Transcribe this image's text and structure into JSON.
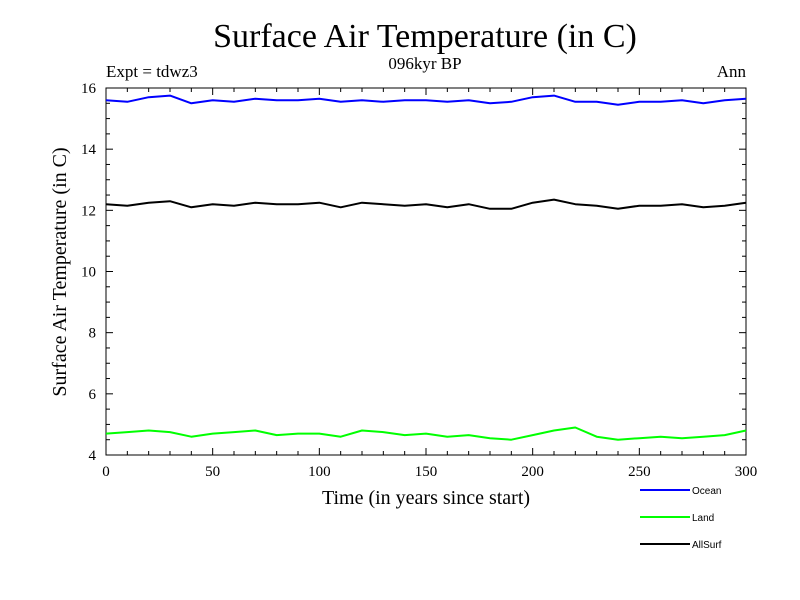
{
  "chart_data": {
    "type": "line",
    "title": "Surface Air Temperature (in C)",
    "subtitle_left": "Expt = tdwz3",
    "subtitle_center": "096kyr BP",
    "subtitle_right": "Ann",
    "xlabel": "Time (in years since start)",
    "ylabel": "Surface Air Temperature (in C)",
    "xlim": [
      0,
      300
    ],
    "ylim": [
      4,
      16
    ],
    "xticks": [
      0,
      50,
      100,
      150,
      200,
      250,
      300
    ],
    "yticks": [
      4,
      6,
      8,
      10,
      12,
      14,
      16
    ],
    "grid": false,
    "legend_position": "bottom-right",
    "series": [
      {
        "name": "Ocean",
        "color": "#0000ff",
        "x": [
          0,
          10,
          20,
          30,
          40,
          50,
          60,
          70,
          80,
          90,
          100,
          110,
          120,
          130,
          140,
          150,
          160,
          170,
          180,
          190,
          200,
          210,
          220,
          230,
          240,
          250,
          260,
          270,
          280,
          290,
          300
        ],
        "y": [
          15.6,
          15.55,
          15.7,
          15.75,
          15.5,
          15.6,
          15.55,
          15.65,
          15.6,
          15.6,
          15.65,
          15.55,
          15.6,
          15.55,
          15.6,
          15.6,
          15.55,
          15.6,
          15.5,
          15.55,
          15.7,
          15.75,
          15.55,
          15.55,
          15.45,
          15.55,
          15.55,
          15.6,
          15.5,
          15.6,
          15.65
        ]
      },
      {
        "name": "Land",
        "color": "#00ff00",
        "x": [
          0,
          10,
          20,
          30,
          40,
          50,
          60,
          70,
          80,
          90,
          100,
          110,
          120,
          130,
          140,
          150,
          160,
          170,
          180,
          190,
          200,
          210,
          220,
          230,
          240,
          250,
          260,
          270,
          280,
          290,
          300
        ],
        "y": [
          4.7,
          4.75,
          4.8,
          4.75,
          4.6,
          4.7,
          4.75,
          4.8,
          4.65,
          4.7,
          4.7,
          4.6,
          4.8,
          4.75,
          4.65,
          4.7,
          4.6,
          4.65,
          4.55,
          4.5,
          4.65,
          4.8,
          4.9,
          4.6,
          4.5,
          4.55,
          4.6,
          4.55,
          4.6,
          4.65,
          4.8
        ]
      },
      {
        "name": "AllSurf",
        "color": "#000000",
        "x": [
          0,
          10,
          20,
          30,
          40,
          50,
          60,
          70,
          80,
          90,
          100,
          110,
          120,
          130,
          140,
          150,
          160,
          170,
          180,
          190,
          200,
          210,
          220,
          230,
          240,
          250,
          260,
          270,
          280,
          290,
          300
        ],
        "y": [
          12.2,
          12.15,
          12.25,
          12.3,
          12.1,
          12.2,
          12.15,
          12.25,
          12.2,
          12.2,
          12.25,
          12.1,
          12.25,
          12.2,
          12.15,
          12.2,
          12.1,
          12.2,
          12.05,
          12.05,
          12.25,
          12.35,
          12.2,
          12.15,
          12.05,
          12.15,
          12.15,
          12.2,
          12.1,
          12.15,
          12.25
        ]
      }
    ]
  }
}
